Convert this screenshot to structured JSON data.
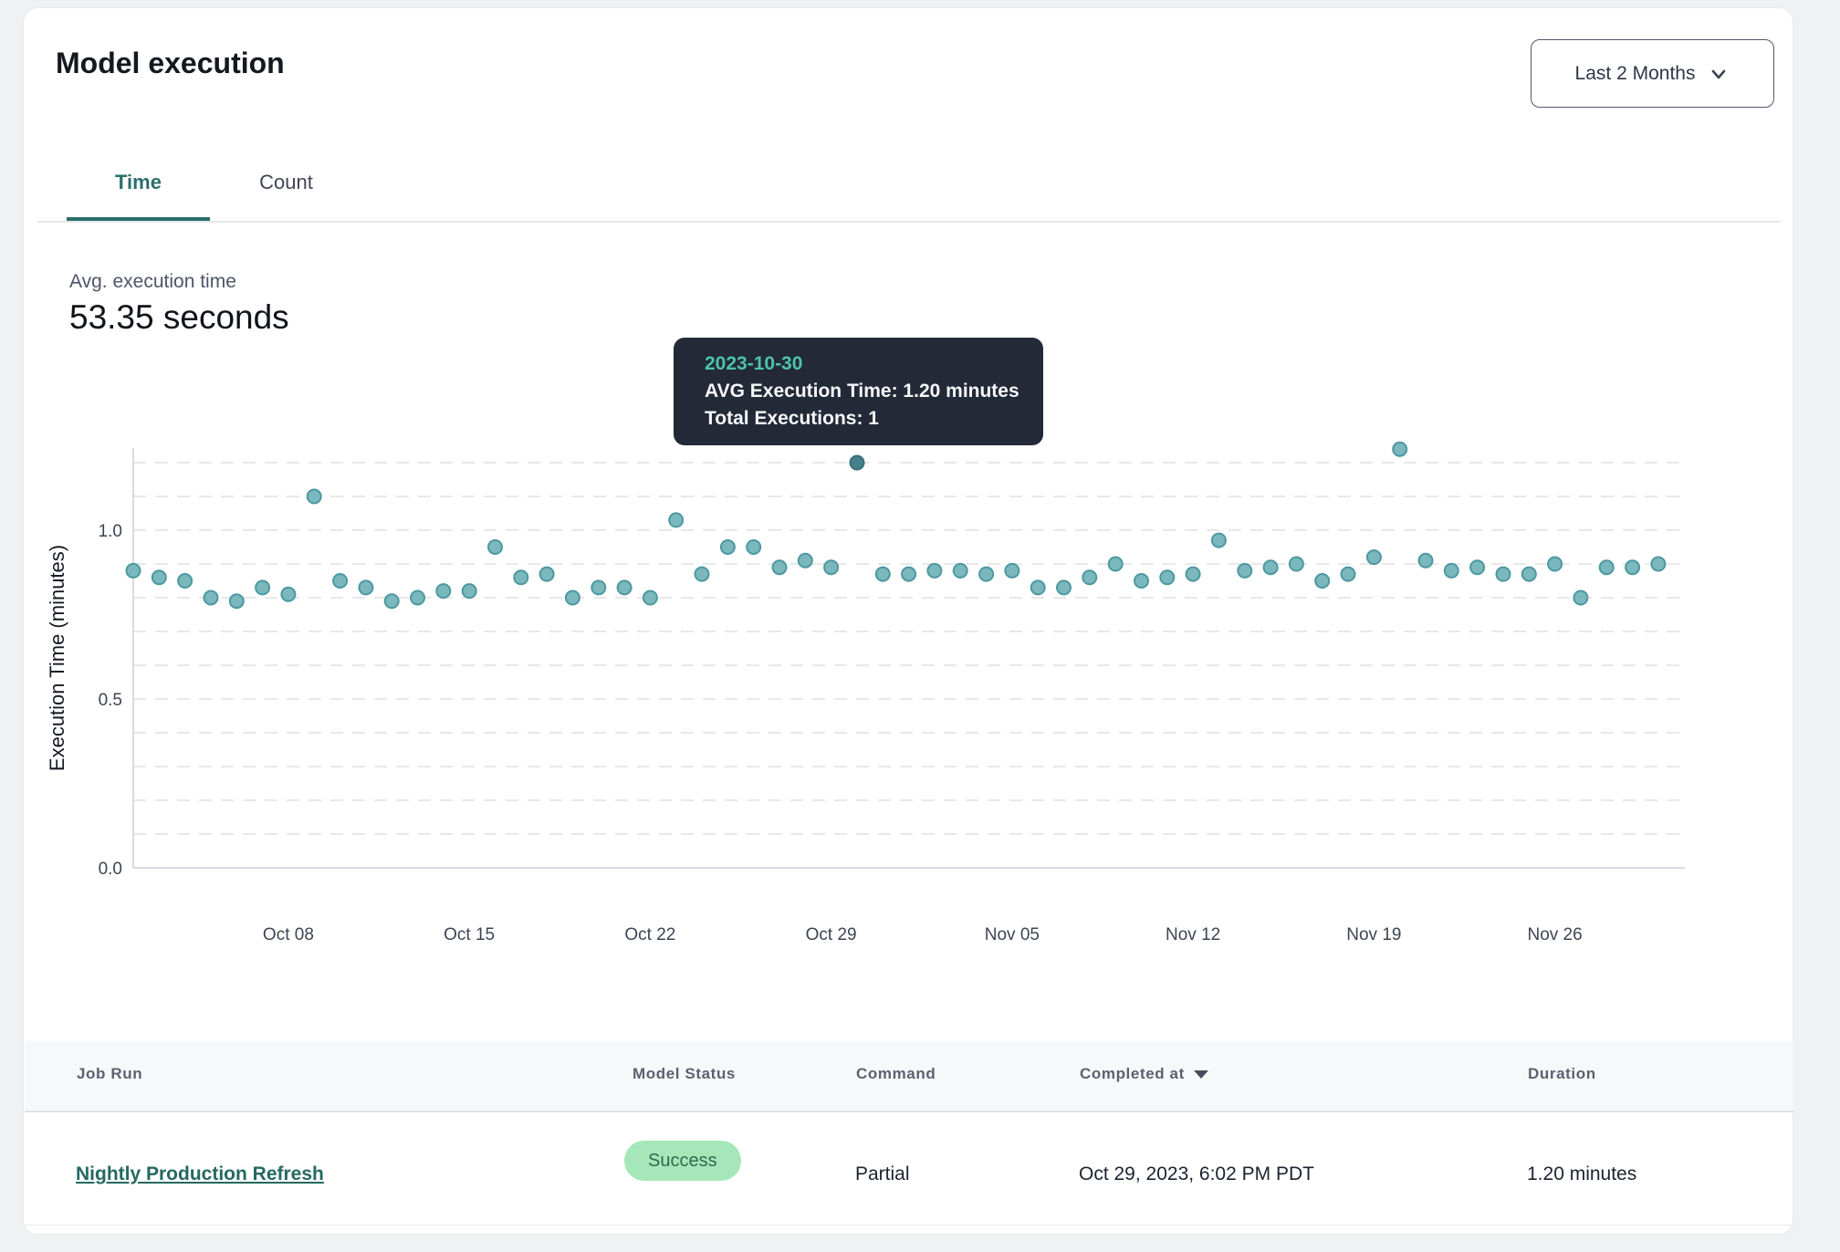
{
  "card": {
    "title": "Model execution"
  },
  "period_selector": {
    "label": "Last 2 Months"
  },
  "tabs": [
    {
      "label": "Time",
      "active": true
    },
    {
      "label": "Count",
      "active": false
    }
  ],
  "summary": {
    "label": "Avg. execution time",
    "value": "53.35 seconds"
  },
  "tooltip": {
    "date": "2023-10-30",
    "avg_line": "AVG Execution Time: 1.20 minutes",
    "total_line": "Total Executions: 1",
    "bg_color": "#232937",
    "accent_color": "#4cc3ab"
  },
  "chart_data": {
    "type": "scatter",
    "title": "",
    "xlabel": "",
    "ylabel": "Execution Time (minutes)",
    "ylim": [
      0,
      1.25
    ],
    "grid": "horizontal dashed, step 0.1, max 1.2",
    "legend": "none",
    "point_color": "#7ab8bd",
    "point_stroke": "#4d98a0",
    "highlight_color": "#45818b",
    "highlight_stroke": "#396f7a",
    "highlight_date": "2023-10-30",
    "y_ticks": [
      {
        "v": 0.0,
        "label": "0.0"
      },
      {
        "v": 0.5,
        "label": "0.5"
      },
      {
        "v": 1.0,
        "label": "1.0"
      }
    ],
    "x_tick_labels": [
      {
        "index": 6,
        "label": "Oct 08"
      },
      {
        "index": 13,
        "label": "Oct 15"
      },
      {
        "index": 20,
        "label": "Oct 22"
      },
      {
        "index": 27,
        "label": "Oct 29"
      },
      {
        "index": 34,
        "label": "Nov 05"
      },
      {
        "index": 41,
        "label": "Nov 12"
      },
      {
        "index": 48,
        "label": "Nov 19"
      },
      {
        "index": 55,
        "label": "Nov 26"
      }
    ],
    "points": [
      {
        "date": "2023-10-02",
        "minutes": 0.88
      },
      {
        "date": "2023-10-03",
        "minutes": 0.86
      },
      {
        "date": "2023-10-04",
        "minutes": 0.85
      },
      {
        "date": "2023-10-05",
        "minutes": 0.8
      },
      {
        "date": "2023-10-06",
        "minutes": 0.79
      },
      {
        "date": "2023-10-07",
        "minutes": 0.83
      },
      {
        "date": "2023-10-08",
        "minutes": 0.81
      },
      {
        "date": "2023-10-09",
        "minutes": 1.1
      },
      {
        "date": "2023-10-10",
        "minutes": 0.85
      },
      {
        "date": "2023-10-11",
        "minutes": 0.83
      },
      {
        "date": "2023-10-12",
        "minutes": 0.79
      },
      {
        "date": "2023-10-13",
        "minutes": 0.8
      },
      {
        "date": "2023-10-14",
        "minutes": 0.82
      },
      {
        "date": "2023-10-15",
        "minutes": 0.82
      },
      {
        "date": "2023-10-16",
        "minutes": 0.95
      },
      {
        "date": "2023-10-17",
        "minutes": 0.86
      },
      {
        "date": "2023-10-18",
        "minutes": 0.87
      },
      {
        "date": "2023-10-19",
        "minutes": 0.8
      },
      {
        "date": "2023-10-20",
        "minutes": 0.83
      },
      {
        "date": "2023-10-21",
        "minutes": 0.83
      },
      {
        "date": "2023-10-22",
        "minutes": 0.8
      },
      {
        "date": "2023-10-23",
        "minutes": 1.03
      },
      {
        "date": "2023-10-24",
        "minutes": 0.87
      },
      {
        "date": "2023-10-25",
        "minutes": 0.95
      },
      {
        "date": "2023-10-26",
        "minutes": 0.95
      },
      {
        "date": "2023-10-27",
        "minutes": 0.89
      },
      {
        "date": "2023-10-28",
        "minutes": 0.91
      },
      {
        "date": "2023-10-29",
        "minutes": 0.89
      },
      {
        "date": "2023-10-30",
        "minutes": 1.2
      },
      {
        "date": "2023-10-31",
        "minutes": 0.87
      },
      {
        "date": "2023-11-01",
        "minutes": 0.87
      },
      {
        "date": "2023-11-02",
        "minutes": 0.88
      },
      {
        "date": "2023-11-03",
        "minutes": 0.88
      },
      {
        "date": "2023-11-04",
        "minutes": 0.87
      },
      {
        "date": "2023-11-05",
        "minutes": 0.88
      },
      {
        "date": "2023-11-06",
        "minutes": 0.83
      },
      {
        "date": "2023-11-07",
        "minutes": 0.83
      },
      {
        "date": "2023-11-08",
        "minutes": 0.86
      },
      {
        "date": "2023-11-09",
        "minutes": 0.9
      },
      {
        "date": "2023-11-10",
        "minutes": 0.85
      },
      {
        "date": "2023-11-11",
        "minutes": 0.86
      },
      {
        "date": "2023-11-12",
        "minutes": 0.87
      },
      {
        "date": "2023-11-13",
        "minutes": 0.97
      },
      {
        "date": "2023-11-14",
        "minutes": 0.88
      },
      {
        "date": "2023-11-15",
        "minutes": 0.89
      },
      {
        "date": "2023-11-16",
        "minutes": 0.9
      },
      {
        "date": "2023-11-17",
        "minutes": 0.85
      },
      {
        "date": "2023-11-18",
        "minutes": 0.87
      },
      {
        "date": "2023-11-19",
        "minutes": 0.92
      },
      {
        "date": "2023-11-20",
        "minutes": 1.24
      },
      {
        "date": "2023-11-21",
        "minutes": 0.91
      },
      {
        "date": "2023-11-22",
        "minutes": 0.88
      },
      {
        "date": "2023-11-23",
        "minutes": 0.89
      },
      {
        "date": "2023-11-24",
        "minutes": 0.87
      },
      {
        "date": "2023-11-25",
        "minutes": 0.87
      },
      {
        "date": "2023-11-26",
        "minutes": 0.9
      },
      {
        "date": "2023-11-27",
        "minutes": 0.8
      },
      {
        "date": "2023-11-28",
        "minutes": 0.89
      },
      {
        "date": "2023-11-29",
        "minutes": 0.89
      },
      {
        "date": "2023-11-30",
        "minutes": 0.9
      }
    ]
  },
  "table": {
    "columns": [
      {
        "label": "Job Run"
      },
      {
        "label": "Model Status"
      },
      {
        "label": "Command"
      },
      {
        "label": "Completed at",
        "sorted": "desc"
      },
      {
        "label": "Duration"
      }
    ],
    "row": {
      "job_run": "Nightly Production Refresh",
      "model_status": "Success",
      "command": "Partial",
      "completed_at": "Oct 29, 2023, 6:02 PM PDT",
      "duration": "1.20 minutes"
    },
    "status_badge_colors": {
      "bg": "#a5e7b8",
      "text": "#2d6b4d"
    }
  }
}
